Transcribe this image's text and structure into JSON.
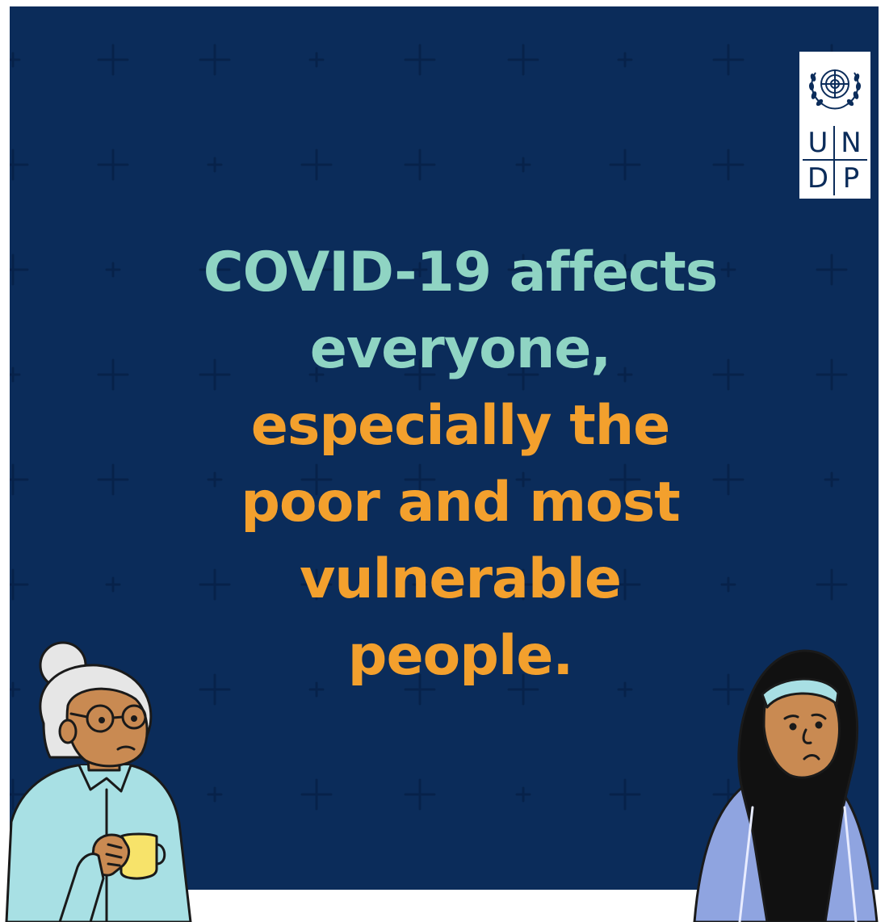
{
  "colors": {
    "background": "#0b2c5a",
    "pattern": "#07224a",
    "accent_mint": "#8fd4c3",
    "accent_orange": "#f3a02d",
    "page": "#ffffff"
  },
  "logo": {
    "emblem_icon": "un-emblem-icon",
    "letters": [
      "U",
      "N",
      "D",
      "P"
    ]
  },
  "headline": {
    "line1_part1": "COVID-19",
    "line1_part2": "affects",
    "line2": "everyone,",
    "line3": "especially the",
    "line4": "poor and most",
    "line5": "vulnerable",
    "line6": "people."
  },
  "illustrations": {
    "left": "elderly-woman-with-mug",
    "right": "woman-in-hijab"
  }
}
